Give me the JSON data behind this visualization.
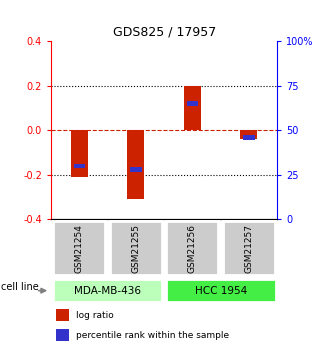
{
  "title": "GDS825 / 17957",
  "samples": [
    "GSM21254",
    "GSM21255",
    "GSM21256",
    "GSM21257"
  ],
  "log_ratios": [
    -0.21,
    -0.31,
    0.2,
    -0.04
  ],
  "percentile_ranks": [
    30,
    28,
    65,
    46
  ],
  "cell_lines": [
    {
      "label": "MDA-MB-436",
      "samples": [
        0,
        1
      ],
      "color": "#bbffbb"
    },
    {
      "label": "HCC 1954",
      "samples": [
        2,
        3
      ],
      "color": "#44ee44"
    }
  ],
  "ylim_left": [
    -0.4,
    0.4
  ],
  "ylim_right": [
    0,
    100
  ],
  "yticks_left": [
    -0.4,
    -0.2,
    0.0,
    0.2,
    0.4
  ],
  "yticks_right": [
    0,
    25,
    50,
    75,
    100
  ],
  "ytick_labels_right": [
    "0",
    "25",
    "50",
    "75",
    "100%"
  ],
  "bar_color_red": "#cc2200",
  "bar_color_blue": "#3333cc",
  "bar_width": 0.3,
  "blue_bar_width": 0.2,
  "hline_color": "#cc2200",
  "sample_box_color": "#cccccc",
  "legend_red_label": "log ratio",
  "legend_blue_label": "percentile rank within the sample",
  "cell_line_label": "cell line"
}
